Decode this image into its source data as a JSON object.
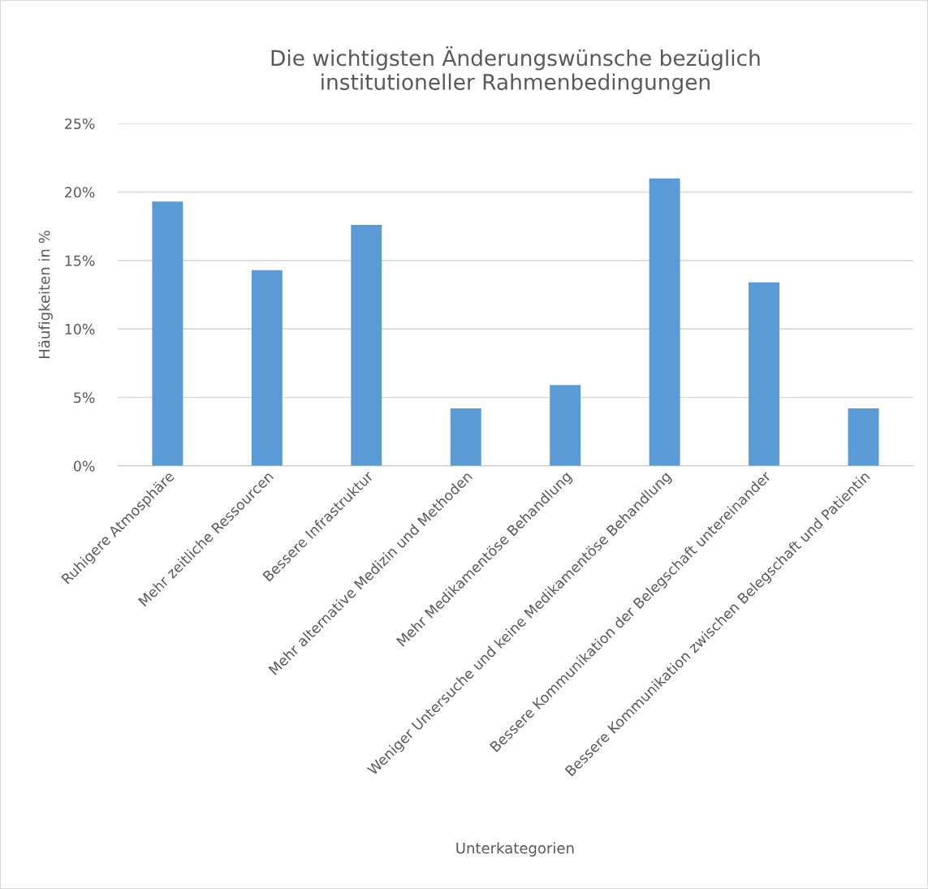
{
  "chart_data": {
    "type": "bar",
    "title": "Die wichtigsten Änderungswünsche bezüglich\ninstitutioneller Rahmenbedingungen",
    "xlabel": "Unterkategorien",
    "ylabel": "Häufigkeiten in %",
    "categories": [
      "Ruhigere Atmosphäre",
      "Mehr zeitliche Ressourcen",
      "Bessere Infrastruktur",
      "Mehr alternative Medizin und Methoden",
      "Mehr Medikamentöse Behandlung",
      "Weniger Untersuche und keine Medikamentöse Behandlung",
      "Bessere Kommunikation der Belegschaft untereinander",
      "Bessere Kommunikation zwischen Belegschaft und Patientin"
    ],
    "values": [
      19.3,
      14.3,
      17.6,
      4.2,
      5.9,
      21.0,
      13.4,
      4.2
    ],
    "color": "#5b9bd5",
    "ylim": [
      0,
      25
    ],
    "yticks": [
      {
        "value": 0,
        "label": "0%"
      },
      {
        "value": 5,
        "label": "5%"
      },
      {
        "value": 10,
        "label": "10%"
      },
      {
        "value": 15,
        "label": "15%"
      },
      {
        "value": 20,
        "label": "20%"
      },
      {
        "value": 25,
        "label": "25%"
      }
    ],
    "grid": "y",
    "legend": false
  }
}
